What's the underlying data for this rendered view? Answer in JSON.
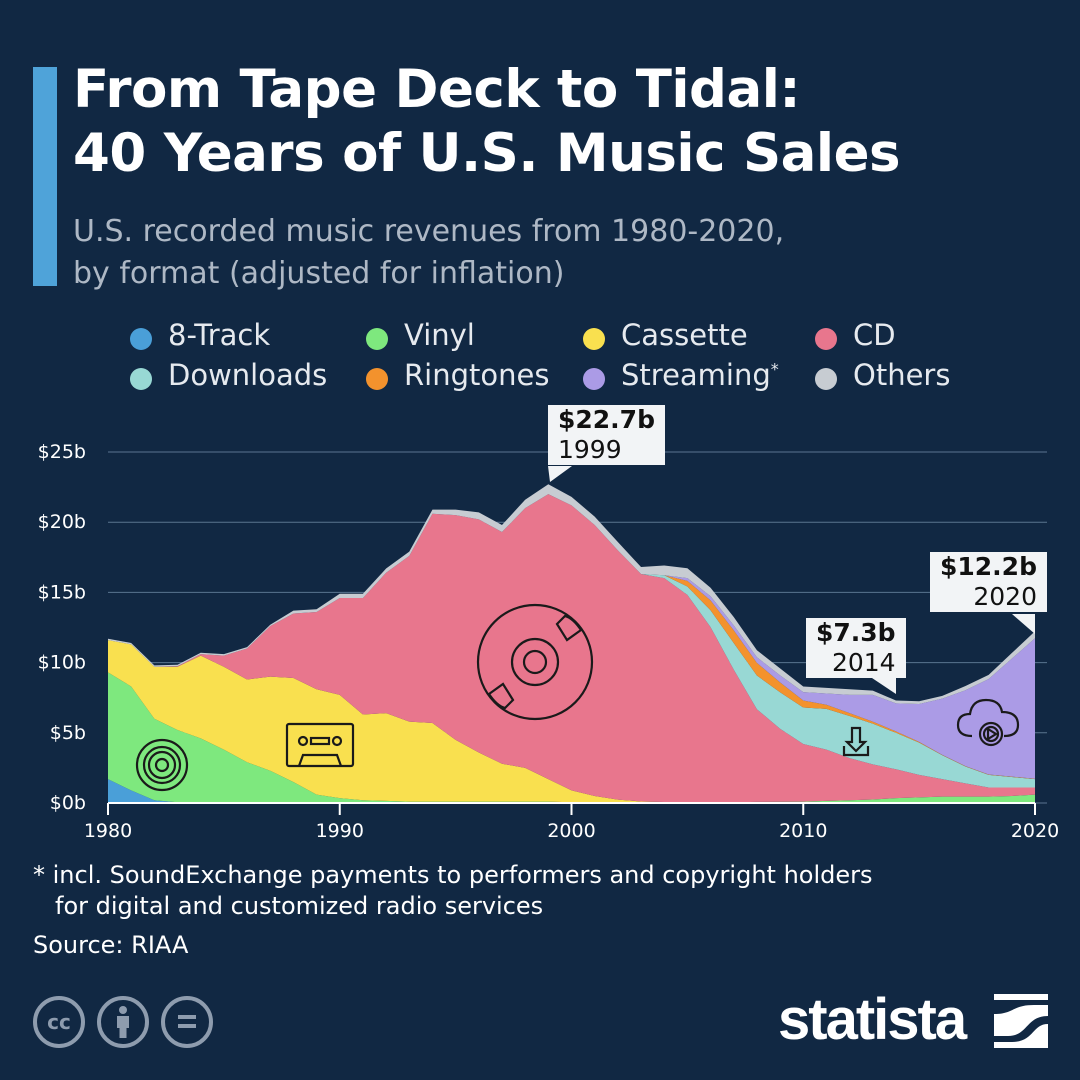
{
  "header": {
    "title_line1": "From Tape Deck to Tidal:",
    "title_line2": "40 Years of U.S. Music Sales",
    "subtitle_line1": "U.S. recorded music revenues from 1980-2020,",
    "subtitle_line2": "by format (adjusted for inflation)",
    "accent_color": "#4fa3d9"
  },
  "chart_data": {
    "type": "area",
    "stacked": true,
    "x": [
      1980,
      1981,
      1982,
      1983,
      1984,
      1985,
      1986,
      1987,
      1988,
      1989,
      1990,
      1991,
      1992,
      1993,
      1994,
      1995,
      1996,
      1997,
      1998,
      1999,
      2000,
      2001,
      2002,
      2003,
      2004,
      2005,
      2006,
      2007,
      2008,
      2009,
      2010,
      2011,
      2012,
      2013,
      2014,
      2015,
      2016,
      2017,
      2018,
      2019,
      2020
    ],
    "xticks": [
      "1980",
      "1990",
      "2000",
      "2010",
      "2020"
    ],
    "yticks": [
      "$0b",
      "$5b",
      "$10b",
      "$15b",
      "$20b",
      "$25b"
    ],
    "ylim": [
      0,
      25
    ],
    "unit": "billion USD",
    "grid": true,
    "legend_placement": "top",
    "series": [
      {
        "name": "8-Track",
        "color": "#4a9fd8",
        "values": [
          1.7,
          0.9,
          0.2,
          0.05,
          0,
          0,
          0,
          0,
          0,
          0,
          0,
          0,
          0,
          0,
          0,
          0,
          0,
          0,
          0,
          0,
          0,
          0,
          0,
          0,
          0,
          0,
          0,
          0,
          0,
          0,
          0,
          0,
          0,
          0,
          0,
          0,
          0,
          0,
          0,
          0,
          0
        ]
      },
      {
        "name": "Vinyl",
        "color": "#7ee87e",
        "values": [
          7.6,
          7.4,
          5.8,
          5.15,
          4.6,
          3.8,
          2.9,
          2.3,
          1.5,
          0.6,
          0.35,
          0.2,
          0.15,
          0.1,
          0.1,
          0.1,
          0.1,
          0.1,
          0.1,
          0.1,
          0.05,
          0.05,
          0.04,
          0.03,
          0.03,
          0.02,
          0.03,
          0.05,
          0.08,
          0.09,
          0.1,
          0.15,
          0.2,
          0.25,
          0.35,
          0.4,
          0.45,
          0.45,
          0.45,
          0.5,
          0.6
        ]
      },
      {
        "name": "Cassette",
        "color": "#f9e04f",
        "values": [
          2.3,
          3.0,
          3.7,
          4.5,
          5.9,
          5.9,
          5.9,
          6.7,
          7.4,
          7.5,
          7.35,
          6.1,
          6.25,
          5.7,
          5.6,
          4.4,
          3.5,
          2.7,
          2.4,
          1.6,
          0.85,
          0.45,
          0.2,
          0.08,
          0.04,
          0,
          0,
          0,
          0,
          0,
          0,
          0,
          0,
          0,
          0,
          0,
          0,
          0,
          0,
          0,
          0
        ]
      },
      {
        "name": "CD",
        "color": "#e8768d",
        "values": [
          0,
          0,
          0,
          0.05,
          0.1,
          0.8,
          2.2,
          3.6,
          4.6,
          5.5,
          6.9,
          8.3,
          10.0,
          11.8,
          14.9,
          16.0,
          16.6,
          16.5,
          18.5,
          20.3,
          20.3,
          19.3,
          17.75,
          16.2,
          15.95,
          14.8,
          12.5,
          9.45,
          6.6,
          5.2,
          4.1,
          3.65,
          3.0,
          2.5,
          2.05,
          1.6,
          1.25,
          0.95,
          0.65,
          0.6,
          0.5
        ]
      },
      {
        "name": "Downloads",
        "color": "#98d8d4",
        "values": [
          0,
          0,
          0,
          0,
          0,
          0,
          0,
          0,
          0,
          0,
          0,
          0,
          0,
          0,
          0,
          0,
          0,
          0,
          0,
          0,
          0,
          0,
          0,
          0,
          0.2,
          0.6,
          1.2,
          1.9,
          2.4,
          2.6,
          2.6,
          2.9,
          3.0,
          2.9,
          2.6,
          2.3,
          1.7,
          1.2,
          0.9,
          0.75,
          0.6
        ]
      },
      {
        "name": "Ringtones",
        "color": "#f3922d",
        "values": [
          0,
          0,
          0,
          0,
          0,
          0,
          0,
          0,
          0,
          0,
          0,
          0,
          0,
          0,
          0,
          0,
          0,
          0,
          0,
          0,
          0,
          0,
          0,
          0,
          0,
          0.4,
          0.7,
          0.9,
          0.9,
          0.7,
          0.5,
          0.3,
          0.2,
          0.15,
          0.1,
          0.05,
          0.03,
          0.03,
          0.03,
          0.03,
          0.03
        ]
      },
      {
        "name": "Streaming",
        "color": "#ab9be6",
        "values": [
          0,
          0,
          0,
          0,
          0,
          0,
          0,
          0,
          0,
          0,
          0,
          0,
          0,
          0,
          0,
          0,
          0,
          0,
          0,
          0,
          0,
          0,
          0,
          0,
          0,
          0.2,
          0.3,
          0.35,
          0.4,
          0.5,
          0.6,
          0.8,
          1.3,
          1.9,
          2.0,
          2.7,
          4.0,
          5.4,
          6.8,
          8.4,
          10.0
        ]
      },
      {
        "name": "Others",
        "color": "#c7ccd2",
        "values": [
          0.1,
          0.1,
          0.1,
          0.1,
          0.1,
          0.1,
          0.1,
          0.1,
          0.2,
          0.2,
          0.3,
          0.3,
          0.3,
          0.3,
          0.3,
          0.4,
          0.5,
          0.5,
          0.6,
          0.7,
          0.6,
          0.6,
          0.6,
          0.5,
          0.7,
          0.7,
          0.6,
          0.6,
          0.5,
          0.5,
          0.4,
          0.4,
          0.4,
          0.3,
          0.2,
          0.2,
          0.2,
          0.3,
          0.3,
          0.4,
          0.5
        ]
      }
    ],
    "legend": {
      "streaming_marker": "*"
    },
    "annotations": [
      {
        "value": "$22.7b",
        "year": "1999"
      },
      {
        "value": "$7.3b",
        "year": "2014"
      },
      {
        "value": "$12.2b",
        "year": "2020"
      }
    ],
    "icons": [
      "vinyl-record-icon",
      "cassette-icon",
      "cd-icon",
      "download-icon",
      "cloud-streaming-icon"
    ]
  },
  "footer": {
    "note_line1": "* incl. SoundExchange payments to performers and copyright holders",
    "note_line2": "for digital and customized radio services",
    "source": "Source: RIAA",
    "license_icons": [
      "cc-icon",
      "attribution-icon",
      "no-derivatives-icon"
    ],
    "cc_text": "cc",
    "brand": "statista"
  }
}
